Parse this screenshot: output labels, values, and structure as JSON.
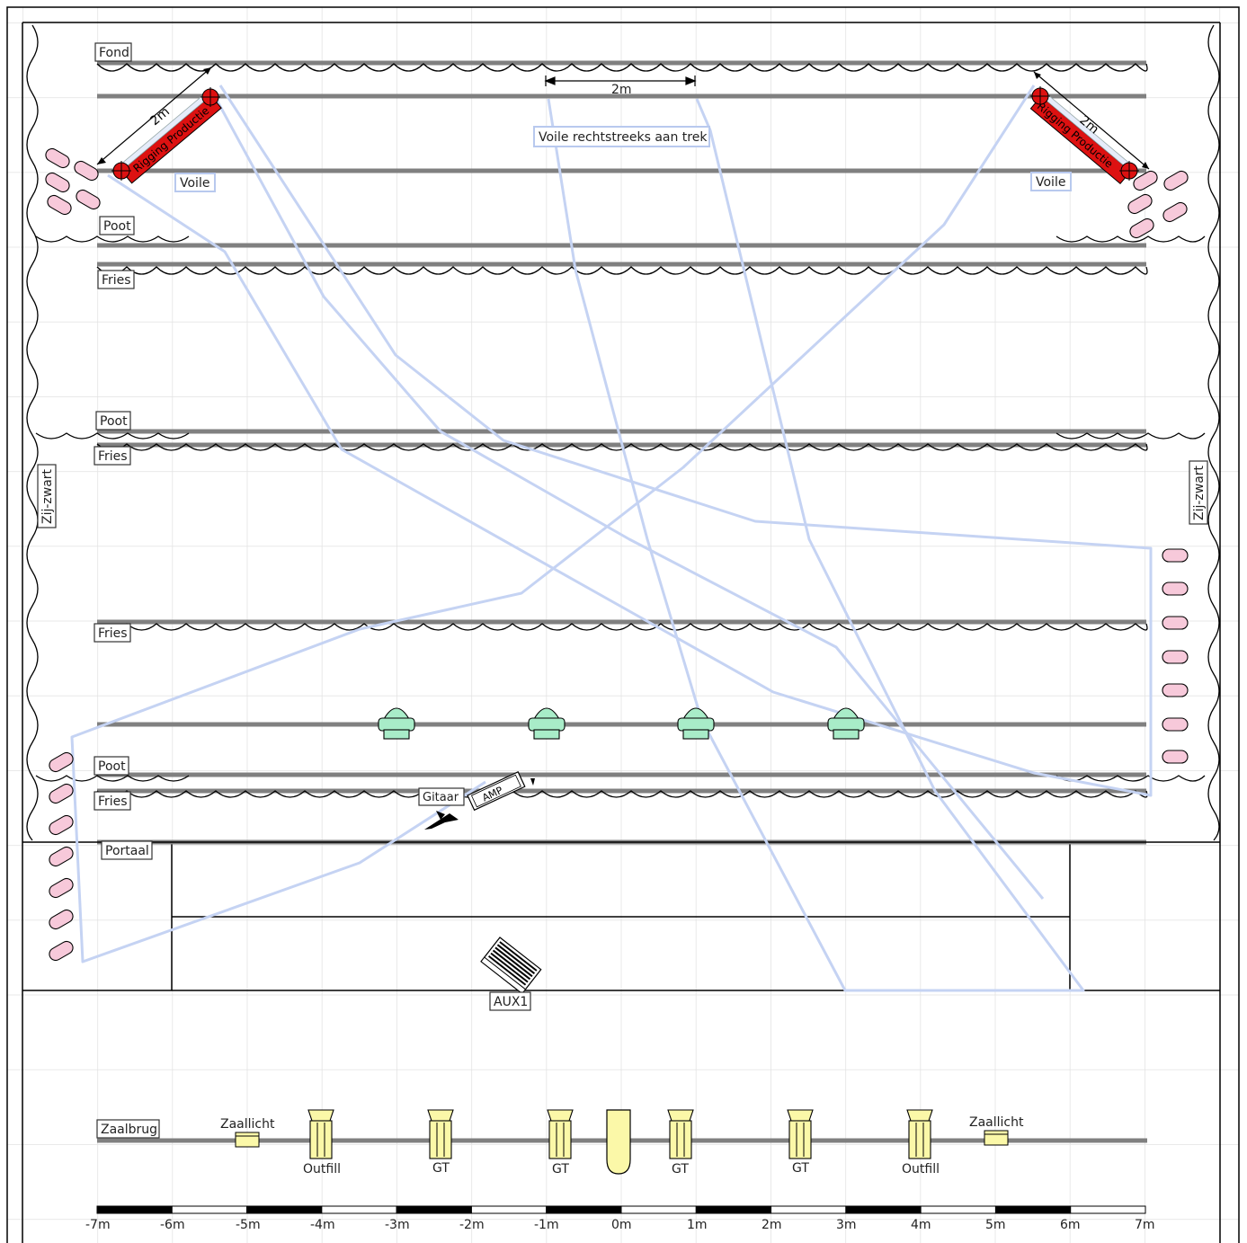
{
  "labels": {
    "fond": "Fond",
    "poot": "Poot",
    "fries": "Fries",
    "voile": "Voile",
    "voile_note": "Voile rechtstreeks aan trek",
    "dimension_2m": "2m",
    "rigging": "Rigging Productie",
    "zij_zwart": "Zij-zwart",
    "portaal": "Portaal",
    "aux1": "AUX1",
    "gitaar": "Gitaar",
    "amp": "AMP",
    "zaalbrug": "Zaalbrug",
    "zaallicht": "Zaallicht",
    "outfill": "Outfill",
    "gt": "GT"
  },
  "scale": {
    "ticks": [
      "-7m",
      "-6m",
      "-5m",
      "-4m",
      "-3m",
      "-2m",
      "-1m",
      "0m",
      "1m",
      "2m",
      "3m",
      "4m",
      "5m",
      "6m",
      "7m"
    ]
  },
  "colors": {
    "batten": "#808080",
    "blue_path": "#c5d3f3",
    "pink_fixture": "#f7c9da",
    "green_fixture": "#a8ecc8",
    "yellow_fixture": "#fbf8a8",
    "rigging_red": "#dd1111"
  }
}
